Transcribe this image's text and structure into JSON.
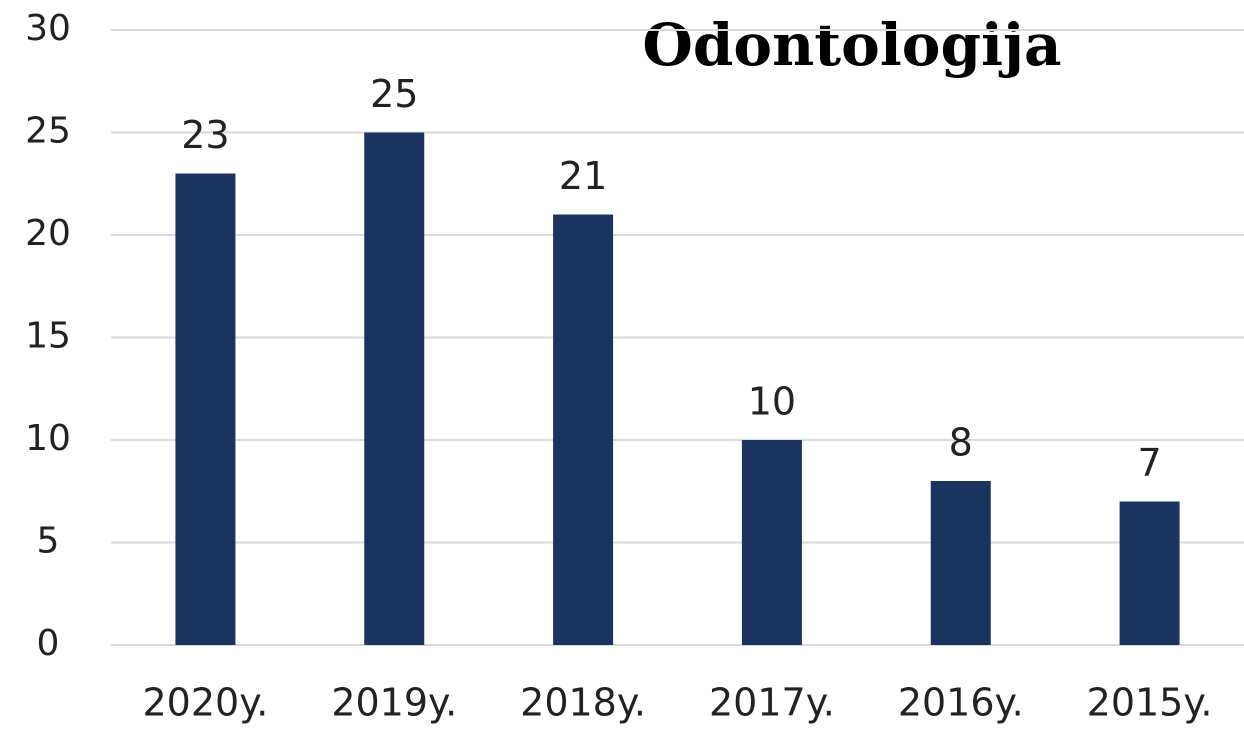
{
  "chart_data": {
    "type": "bar",
    "title": "Odontologija",
    "categories": [
      "2020y.",
      "2019y.",
      "2018y.",
      "2017y.",
      "2016y.",
      "2015y."
    ],
    "values": [
      23,
      25,
      21,
      10,
      8,
      7
    ],
    "color": "#1b335f",
    "ylim": [
      0,
      30
    ],
    "yticks": [
      0,
      5,
      10,
      15,
      20,
      25,
      30
    ],
    "grid": true,
    "data_labels": true
  }
}
